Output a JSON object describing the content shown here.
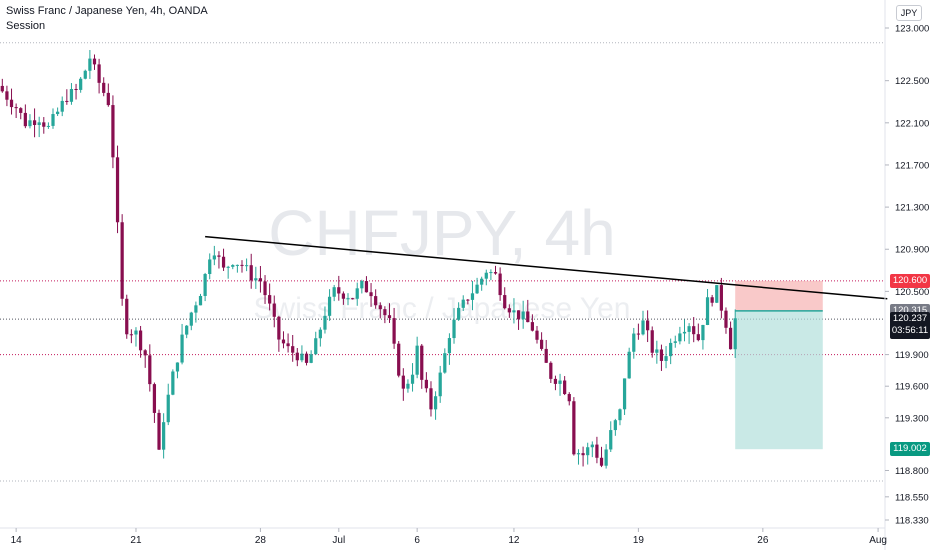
{
  "header": {
    "title": "Swiss Franc / Japanese Yen, 4h, OANDA",
    "subtitle": "Session"
  },
  "watermark": {
    "symbol": "CHFJPY, 4h",
    "name": "Swiss Franc / Japanese Yen"
  },
  "currency_badge": "JPY",
  "price_tags": {
    "stop": "120.600",
    "entry": "120.315",
    "last": "120.237",
    "countdown": "03:56:11",
    "target": "119.002"
  },
  "colors": {
    "up": "#26a69a",
    "down": "#880e4f",
    "stop_zone": "#f7b2b2",
    "target_zone": "#b2dfdb",
    "red_level": "#c2185b",
    "last_price": "#131722"
  },
  "chart_data": {
    "type": "candlestick",
    "title": "Swiss Franc / Japanese Yen, 4h, OANDA",
    "symbol": "CHFJPY",
    "timeframe": "4h",
    "y_ticks": [
      123.0,
      122.5,
      122.1,
      121.7,
      121.3,
      120.9,
      120.5,
      119.9,
      119.6,
      119.3,
      118.8,
      118.55,
      118.33
    ],
    "y_tick_labels": [
      "123.000",
      "122.500",
      "122.100",
      "121.700",
      "121.300",
      "120.900",
      "120.500",
      "119.900",
      "119.600",
      "119.300",
      "118.800",
      "118.550",
      "118.330"
    ],
    "x_ticks": [
      "14",
      "21",
      "28",
      "Jul",
      "6",
      "12",
      "19",
      "26",
      "Aug"
    ],
    "close_path": [
      [
        0,
        122.4
      ],
      [
        3,
        122.25
      ],
      [
        5,
        122.1
      ],
      [
        8,
        122.15
      ],
      [
        10,
        122.05
      ],
      [
        12,
        122.2
      ],
      [
        14,
        122.35
      ],
      [
        16,
        122.4
      ],
      [
        18,
        122.6
      ],
      [
        19,
        122.72
      ],
      [
        21,
        122.48
      ],
      [
        23,
        122.3
      ],
      [
        24,
        121.8
      ],
      [
        25,
        121.1
      ],
      [
        26,
        120.4
      ],
      [
        27,
        120.15
      ],
      [
        29,
        120.1
      ],
      [
        31,
        119.9
      ],
      [
        33,
        119.35
      ],
      [
        34,
        118.95
      ],
      [
        35,
        119.3
      ],
      [
        37,
        119.7
      ],
      [
        39,
        120.05
      ],
      [
        41,
        120.3
      ],
      [
        43,
        120.5
      ],
      [
        44,
        120.65
      ],
      [
        45,
        120.85
      ],
      [
        46,
        120.9
      ],
      [
        48,
        120.7
      ],
      [
        50,
        120.8
      ],
      [
        52,
        120.75
      ],
      [
        54,
        120.65
      ],
      [
        56,
        120.6
      ],
      [
        58,
        120.35
      ],
      [
        60,
        120.05
      ],
      [
        62,
        119.95
      ],
      [
        64,
        119.9
      ],
      [
        66,
        119.8
      ],
      [
        68,
        120.0
      ],
      [
        70,
        120.3
      ],
      [
        72,
        120.5
      ],
      [
        74,
        120.48
      ],
      [
        76,
        120.45
      ],
      [
        78,
        120.55
      ],
      [
        80,
        120.5
      ],
      [
        82,
        120.35
      ],
      [
        84,
        120.2
      ],
      [
        85,
        119.95
      ],
      [
        87,
        119.55
      ],
      [
        89,
        119.75
      ],
      [
        90,
        119.95
      ],
      [
        91,
        119.65
      ],
      [
        93,
        119.4
      ],
      [
        95,
        119.7
      ],
      [
        97,
        120.1
      ],
      [
        99,
        120.3
      ],
      [
        101,
        120.45
      ],
      [
        103,
        120.55
      ],
      [
        105,
        120.7
      ],
      [
        107,
        120.65
      ],
      [
        109,
        120.4
      ],
      [
        111,
        120.3
      ],
      [
        113,
        120.25
      ],
      [
        115,
        120.15
      ],
      [
        117,
        119.9
      ],
      [
        119,
        119.7
      ],
      [
        121,
        119.65
      ],
      [
        123,
        119.5
      ],
      [
        124,
        119.0
      ],
      [
        126,
        118.95
      ],
      [
        128,
        119.05
      ],
      [
        130,
        118.85
      ],
      [
        132,
        119.15
      ],
      [
        134,
        119.35
      ],
      [
        135,
        119.7
      ],
      [
        137,
        120.1
      ],
      [
        139,
        120.2
      ],
      [
        141,
        119.95
      ],
      [
        143,
        119.85
      ],
      [
        145,
        120.0
      ],
      [
        147,
        120.15
      ],
      [
        149,
        120.2
      ],
      [
        151,
        120.05
      ],
      [
        153,
        120.4
      ],
      [
        155,
        120.5
      ],
      [
        157,
        120.2
      ],
      [
        158,
        120.0
      ],
      [
        159,
        120.237
      ]
    ],
    "trendline": {
      "start": [
        44,
        121.02
      ],
      "end": [
        192,
        120.43
      ]
    },
    "horizontal_levels": [
      {
        "price": 122.86,
        "style": "dotted-grey"
      },
      {
        "price": 120.6,
        "style": "dotted-red"
      },
      {
        "price": 119.9,
        "style": "dotted-red"
      },
      {
        "price": 120.237,
        "style": "dotted-black"
      },
      {
        "price": 118.7,
        "style": "dotted-grey"
      }
    ],
    "position": {
      "side": "short",
      "entry": 120.315,
      "stop": 120.6,
      "target": 119.002,
      "bar_start": 159,
      "bar_end": 178
    },
    "ylim": [
      118.25,
      123.25
    ],
    "bars_visible": 192,
    "grid": false,
    "watermark": true
  }
}
